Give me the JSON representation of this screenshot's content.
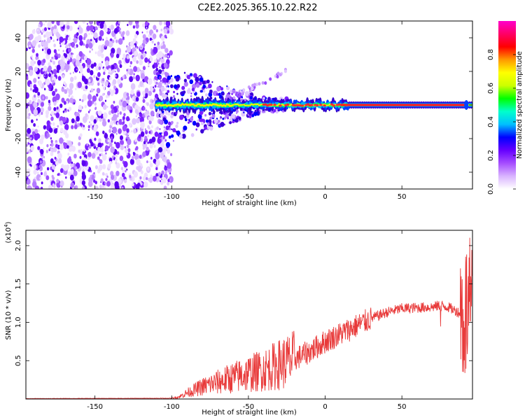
{
  "title": "C2E2.2025.365.10.22.R22",
  "chart_data": [
    {
      "type": "heatmap",
      "name": "spectrogram",
      "xlabel": "Height of straight line (km)",
      "ylabel": "Frequency (Hz)",
      "xlim": [
        -195,
        96
      ],
      "ylim": [
        -50,
        50
      ],
      "x_ticks": [
        -150,
        -100,
        -50,
        0,
        50
      ],
      "y_ticks": [
        -40,
        -20,
        0,
        20,
        40
      ],
      "noise_region_x": [
        -195,
        -100
      ],
      "signal_band_hz": 0,
      "colorbar": {
        "label": "Normalized spectral amplitude",
        "range": [
          0.0,
          1.0
        ],
        "ticks": [
          "0.0",
          "0.2",
          "0.4",
          "0.6",
          "0.8"
        ],
        "tick_values": [
          0.0,
          0.2,
          0.4,
          0.6,
          0.8
        ],
        "colors": [
          "#ffffff",
          "#d9b3ff",
          "#a64dff",
          "#6600ff",
          "#0000ff",
          "#00bfff",
          "#00ffcc",
          "#00ff00",
          "#ccff00",
          "#ffff00",
          "#ff9900",
          "#ff0000",
          "#ff0066",
          "#ff00cc"
        ]
      }
    },
    {
      "type": "line",
      "name": "snr",
      "xlabel": "Height of straight line (km)",
      "ylabel": "SNR (10 * v/v)",
      "scale_label": "(x10",
      "scale_exp": "4",
      "scale_close": ")",
      "xlim": [
        -195,
        96
      ],
      "ylim": [
        0,
        2.2
      ],
      "x_ticks": [
        -150,
        -100,
        -50,
        0,
        50
      ],
      "y_ticks": [
        "0.5",
        "1.0",
        "1.5",
        "2.0"
      ],
      "y_tick_values": [
        0.5,
        1.0,
        1.5,
        2.0
      ],
      "color": "#e83a3a",
      "trend": {
        "x": [
          -195,
          -100,
          -95,
          -90,
          -80,
          -70,
          -60,
          -50,
          -40,
          -30,
          -20,
          -10,
          0,
          10,
          20,
          30,
          40,
          50,
          60,
          70,
          75,
          80,
          85,
          90,
          96
        ],
        "y": [
          0.005,
          0.01,
          0.03,
          0.08,
          0.16,
          0.22,
          0.28,
          0.33,
          0.38,
          0.45,
          0.52,
          0.62,
          0.75,
          0.85,
          0.95,
          1.05,
          1.13,
          1.18,
          1.19,
          1.2,
          1.22,
          1.2,
          1.15,
          1.1,
          1.2
        ]
      }
    }
  ]
}
